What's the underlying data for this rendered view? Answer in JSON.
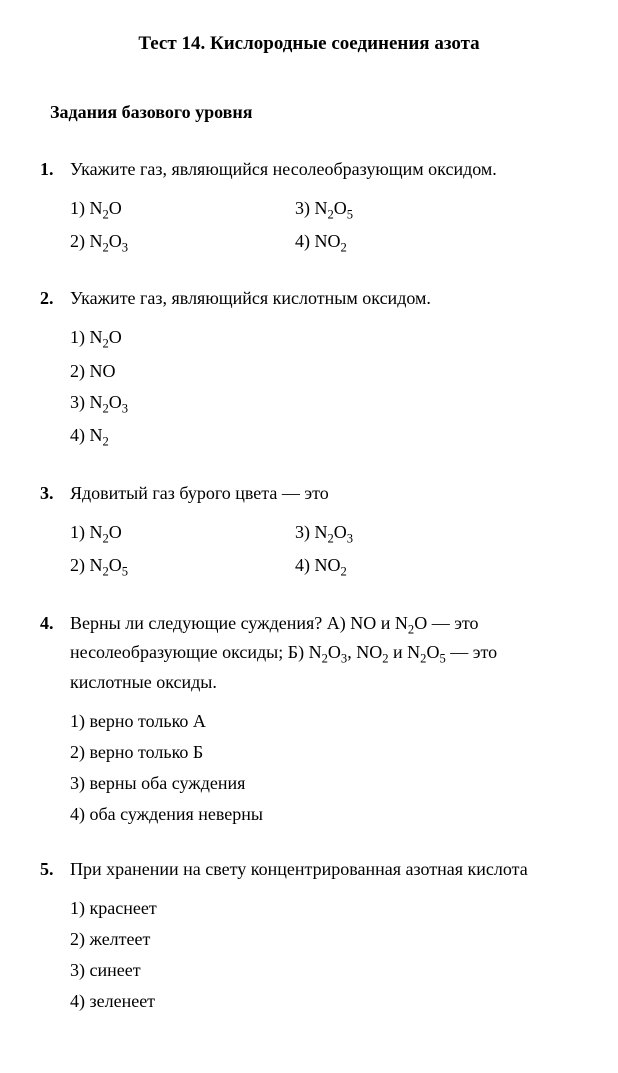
{
  "title": "Тест 14. Кислородные соединения азота",
  "subtitle": "Задания базового уровня",
  "questions": [
    {
      "num": "1.",
      "prompt": "Укажите газ, являющийся несолеобразующим оксидом.",
      "layout": "2col",
      "options": [
        {
          "n": "1)",
          "formula": "N₂O"
        },
        {
          "n": "3)",
          "formula": "N₂O₅"
        },
        {
          "n": "2)",
          "formula": "N₂O₃"
        },
        {
          "n": "4)",
          "formula": "NO₂"
        }
      ]
    },
    {
      "num": "2.",
      "prompt": "Укажите газ, являющийся кислотным оксидом.",
      "layout": "1col",
      "options": [
        {
          "n": "1)",
          "formula": "N₂O"
        },
        {
          "n": "2)",
          "formula": "NO"
        },
        {
          "n": "3)",
          "formula": "N₂O₃"
        },
        {
          "n": "4)",
          "formula": "N₂"
        }
      ]
    },
    {
      "num": "3.",
      "prompt": "Ядовитый газ бурого цвета — это",
      "layout": "2col",
      "options": [
        {
          "n": "1)",
          "formula": "N₂O"
        },
        {
          "n": "3)",
          "formula": "N₂O₃"
        },
        {
          "n": "2)",
          "formula": "N₂O₅"
        },
        {
          "n": "4)",
          "formula": "NO₂"
        }
      ]
    },
    {
      "num": "4.",
      "prompt": "Верны ли следующие суждения? А) NO и N₂O — это несолеобразующие оксиды; Б) N₂O₃, NO₂ и N₂O₅ — это кислотные оксиды.",
      "layout": "1col",
      "options": [
        {
          "n": "1)",
          "text": "верно только А"
        },
        {
          "n": "2)",
          "text": "верно только Б"
        },
        {
          "n": "3)",
          "text": "верны оба суждения"
        },
        {
          "n": "4)",
          "text": "оба суждения неверны"
        }
      ]
    },
    {
      "num": "5.",
      "prompt": "При хранении на свету концентрированная азотная кислота",
      "layout": "1col",
      "options": [
        {
          "n": "1)",
          "text": "краснеет"
        },
        {
          "n": "2)",
          "text": "желтеет"
        },
        {
          "n": "3)",
          "text": "синеет"
        },
        {
          "n": "4)",
          "text": "зеленеет"
        }
      ]
    }
  ]
}
